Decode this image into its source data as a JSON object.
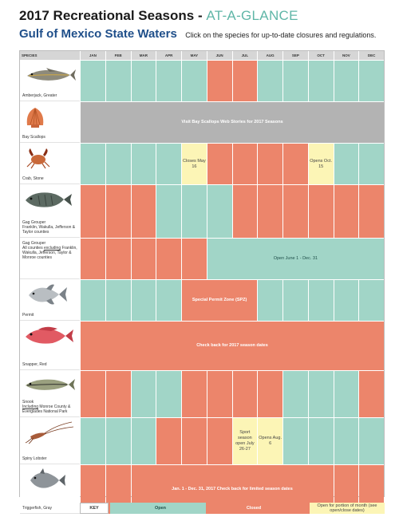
{
  "header": {
    "title": "2017 Recreational Seasons",
    "title_sep": " - ",
    "title_accent": "AT-A-GLANCE",
    "subtitle": "Gulf of Mexico State Waters",
    "note": "Click on the species for up-to-date closures and regulations."
  },
  "table": {
    "species_header": "SPECIES",
    "months": [
      "JAN",
      "FEB",
      "MAR",
      "APR",
      "MAY",
      "JUN",
      "JUL",
      "AUG",
      "SEP",
      "OCT",
      "NOV",
      "DEC"
    ],
    "rows": [
      {
        "label": "Amberjack, Greater",
        "icon": "amberjack-fish-icon"
      },
      {
        "label": "Bay Scallops",
        "icon": "scallop-shell-icon",
        "note": "Visit Bay Scallops Web Stories for 2017 Seasons"
      },
      {
        "label": "Crab, Stone",
        "icon": "stone-crab-icon",
        "closes_label": "Closes May 16",
        "opens_label": "Opens Oct. 15"
      },
      {
        "label": "Gag Grouper",
        "sublabel": "Franklin, Wakulla, Jefferson & Taylor counties",
        "icon": "gag-grouper-fish-icon"
      },
      {
        "label": "Gag Grouper",
        "sublabel_pre": "All counties ",
        "sublabel_ul": "excluding",
        "sublabel_post": " Franklin, Wakulla, Jefferson, Taylor & Monroe counties",
        "note": "Open June 1 - Dec. 31"
      },
      {
        "label": "Permit",
        "icon": "permit-fish-icon",
        "note": "Special Permit Zone (SPZ)"
      },
      {
        "label": "Snapper, Red",
        "icon": "red-snapper-fish-icon",
        "note": "Check back for 2017 season dates"
      },
      {
        "label": "Snook",
        "sublabel_ul": "Including",
        "sublabel_post": " Monroe County & Everglades National Park",
        "icon": "snook-fish-icon"
      },
      {
        "label": "Spiny Lobster",
        "icon": "spiny-lobster-icon",
        "sport_label": "Sport season open July 26-27",
        "open_label": "Opens Aug. 6"
      },
      {
        "label": "Triggerfish, Gray",
        "icon": "gray-triggerfish-icon",
        "note": "Jan. 1 - Dec. 31, 2017 Check back for limited season dates"
      }
    ]
  },
  "legend": {
    "key": "KEY",
    "open": "Open",
    "closed": "Closed",
    "partial": "Open for portion of month (see open/close dates)"
  },
  "colors": {
    "open": "#a1d5c7",
    "closed": "#ec856b",
    "partial": "#fcf5b6",
    "gray": "#b3b3b3",
    "title_accent": "#5fb6a7",
    "subtitle": "#1f4f8a"
  }
}
